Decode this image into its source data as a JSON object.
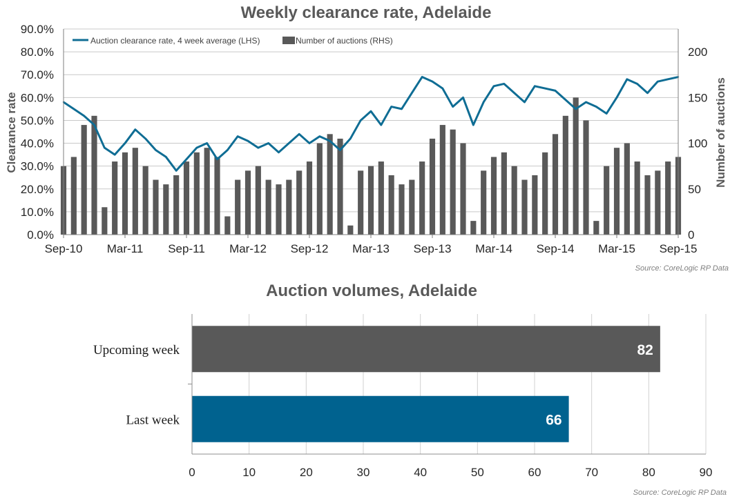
{
  "chart_data": [
    {
      "type": "line+bar",
      "title": "Weekly clearance  rate, Adelaide",
      "ylabel": "Clearance rate",
      "y2label": "Number of auctions",
      "ylim": [
        0,
        0.9
      ],
      "y2lim": [
        0,
        225
      ],
      "yticks": [
        "0.0%",
        "10.0%",
        "20.0%",
        "30.0%",
        "40.0%",
        "50.0%",
        "60.0%",
        "70.0%",
        "80.0%",
        "90.0%"
      ],
      "y2ticks": [
        "0",
        "50",
        "100",
        "150",
        "200"
      ],
      "xticks": [
        "Sep-10",
        "Mar-11",
        "Sep-11",
        "Mar-12",
        "Sep-12",
        "Mar-13",
        "Sep-13",
        "Mar-14",
        "Sep-14",
        "Mar-15",
        "Sep-15"
      ],
      "legend": [
        "Auction clearance rate, 4 week average (LHS)",
        "Number of auctions (RHS)"
      ],
      "legend_position": "top-left",
      "source": "Source: CoreLogic  RP Data",
      "colors": {
        "line": "#0f6d94",
        "bars": "#595959"
      },
      "series": [
        {
          "name": "Number of auctions (RHS)",
          "axis": "right",
          "kind": "bar",
          "note": "approximate monthly averages read from chart",
          "x": [
            "2010-09",
            "2010-10",
            "2010-11",
            "2010-12",
            "2011-01",
            "2011-02",
            "2011-03",
            "2011-04",
            "2011-05",
            "2011-06",
            "2011-07",
            "2011-08",
            "2011-09",
            "2011-10",
            "2011-11",
            "2011-12",
            "2012-01",
            "2012-02",
            "2012-03",
            "2012-04",
            "2012-05",
            "2012-06",
            "2012-07",
            "2012-08",
            "2012-09",
            "2012-10",
            "2012-11",
            "2012-12",
            "2013-01",
            "2013-02",
            "2013-03",
            "2013-04",
            "2013-05",
            "2013-06",
            "2013-07",
            "2013-08",
            "2013-09",
            "2013-10",
            "2013-11",
            "2013-12",
            "2014-01",
            "2014-02",
            "2014-03",
            "2014-04",
            "2014-05",
            "2014-06",
            "2014-07",
            "2014-08",
            "2014-09",
            "2014-10",
            "2014-11",
            "2014-12",
            "2015-01",
            "2015-02",
            "2015-03",
            "2015-04",
            "2015-05",
            "2015-06",
            "2015-07",
            "2015-08",
            "2015-09"
          ],
          "values": [
            75,
            85,
            120,
            130,
            30,
            80,
            90,
            95,
            75,
            60,
            55,
            65,
            80,
            90,
            95,
            85,
            20,
            60,
            70,
            75,
            60,
            55,
            60,
            70,
            80,
            100,
            110,
            105,
            10,
            70,
            75,
            80,
            65,
            55,
            60,
            80,
            105,
            120,
            115,
            100,
            15,
            70,
            85,
            90,
            75,
            60,
            65,
            90,
            110,
            130,
            150,
            125,
            15,
            75,
            95,
            100,
            80,
            65,
            70,
            80,
            85
          ]
        },
        {
          "name": "Auction clearance rate, 4 week average (LHS)",
          "axis": "left",
          "kind": "line",
          "note": "approximate monthly values read from chart",
          "x": [
            "2010-09",
            "2010-10",
            "2010-11",
            "2010-12",
            "2011-01",
            "2011-02",
            "2011-03",
            "2011-04",
            "2011-05",
            "2011-06",
            "2011-07",
            "2011-08",
            "2011-09",
            "2011-10",
            "2011-11",
            "2011-12",
            "2012-01",
            "2012-02",
            "2012-03",
            "2012-04",
            "2012-05",
            "2012-06",
            "2012-07",
            "2012-08",
            "2012-09",
            "2012-10",
            "2012-11",
            "2012-12",
            "2013-01",
            "2013-02",
            "2013-03",
            "2013-04",
            "2013-05",
            "2013-06",
            "2013-07",
            "2013-08",
            "2013-09",
            "2013-10",
            "2013-11",
            "2013-12",
            "2014-01",
            "2014-02",
            "2014-03",
            "2014-04",
            "2014-05",
            "2014-06",
            "2014-07",
            "2014-08",
            "2014-09",
            "2014-10",
            "2014-11",
            "2014-12",
            "2015-01",
            "2015-02",
            "2015-03",
            "2015-04",
            "2015-05",
            "2015-06",
            "2015-07",
            "2015-08",
            "2015-09"
          ],
          "values": [
            0.58,
            0.55,
            0.52,
            0.48,
            0.38,
            0.35,
            0.4,
            0.46,
            0.42,
            0.37,
            0.34,
            0.28,
            0.33,
            0.38,
            0.4,
            0.33,
            0.37,
            0.43,
            0.41,
            0.38,
            0.4,
            0.36,
            0.4,
            0.44,
            0.4,
            0.43,
            0.41,
            0.37,
            0.42,
            0.5,
            0.54,
            0.48,
            0.56,
            0.55,
            0.62,
            0.69,
            0.67,
            0.64,
            0.56,
            0.6,
            0.48,
            0.58,
            0.65,
            0.66,
            0.62,
            0.58,
            0.65,
            0.64,
            0.63,
            0.59,
            0.55,
            0.58,
            0.56,
            0.53,
            0.6,
            0.68,
            0.66,
            0.62,
            0.67,
            0.68,
            0.69
          ]
        }
      ]
    },
    {
      "type": "bar",
      "orientation": "horizontal",
      "title": "Auction volumes, Adelaide",
      "categories": [
        "Upcoming week",
        "Last week"
      ],
      "values": [
        82,
        66
      ],
      "labels": [
        "82",
        "66"
      ],
      "xlim": [
        0,
        90
      ],
      "xticks": [
        "0",
        "10",
        "20",
        "30",
        "40",
        "50",
        "60",
        "70",
        "80",
        "90"
      ],
      "grid": true,
      "source": "Source: CoreLogic  RP Data",
      "colors": [
        "#595959",
        "#00628f"
      ]
    }
  ]
}
